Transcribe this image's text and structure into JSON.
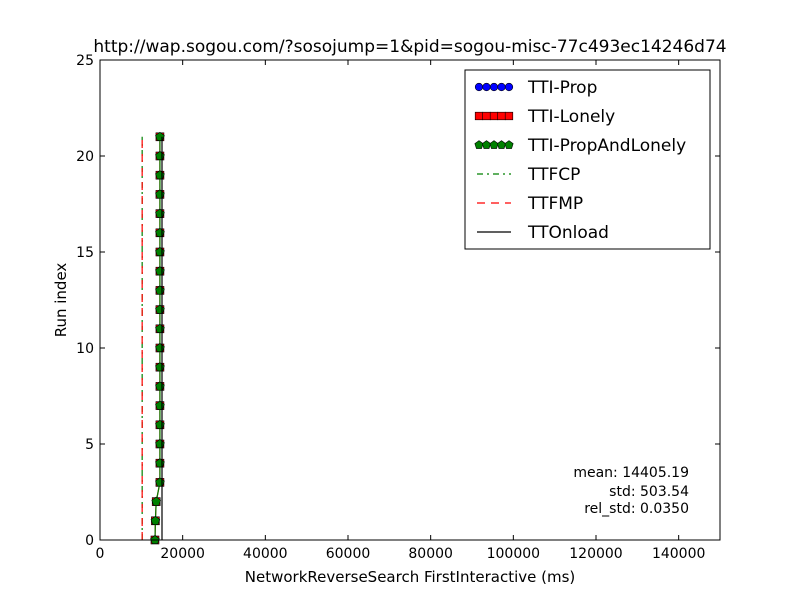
{
  "chart_data": {
    "type": "line",
    "title": "http://wap.sogou.com/?sosojump=1&pid=sogou-misc-77c493ec14246d74",
    "xlabel": "NetworkReverseSearch FirstInteractive (ms)",
    "ylabel": "Run index",
    "xlim": [
      0,
      150000
    ],
    "ylim": [
      0,
      25
    ],
    "xticks": [
      0,
      20000,
      40000,
      60000,
      80000,
      100000,
      120000,
      140000
    ],
    "xtick_labels": [
      "0",
      "20000",
      "40000",
      "60000",
      "80000",
      "100000",
      "120000",
      "140000"
    ],
    "yticks": [
      0,
      5,
      10,
      15,
      20,
      25
    ],
    "ytick_labels": [
      "0",
      "5",
      "10",
      "15",
      "20",
      "25"
    ],
    "grid": false,
    "legend_position": "top-right",
    "series": [
      {
        "name": "TTI-Prop",
        "color": "#0000ff",
        "marker": "circle",
        "x": [],
        "y": []
      },
      {
        "name": "TTI-Lonely",
        "color": "#ff0000",
        "marker": "square",
        "x": [
          13300,
          13400,
          13600,
          14500,
          14500,
          14500,
          14500,
          14500,
          14500,
          14500,
          14500,
          14500,
          14500,
          14500,
          14500,
          14500,
          14500,
          14500,
          14500,
          14500,
          14500,
          14500
        ],
        "y": [
          0,
          1,
          2,
          3,
          4,
          5,
          6,
          7,
          8,
          9,
          10,
          11,
          12,
          13,
          14,
          15,
          16,
          17,
          18,
          19,
          20,
          21
        ]
      },
      {
        "name": "TTI-PropAndLonely",
        "color": "#008000",
        "marker": "pentagon",
        "x": [
          13300,
          13400,
          13600,
          14500,
          14500,
          14500,
          14500,
          14500,
          14500,
          14500,
          14500,
          14500,
          14500,
          14500,
          14500,
          14500,
          14500,
          14500,
          14500,
          14500,
          14500,
          14500
        ],
        "y": [
          0,
          1,
          2,
          3,
          4,
          5,
          6,
          7,
          8,
          9,
          10,
          11,
          12,
          13,
          14,
          15,
          16,
          17,
          18,
          19,
          20,
          21
        ]
      },
      {
        "name": "TTFCP",
        "color": "#008000",
        "style": "dashdot",
        "x": [
          10200,
          10200
        ],
        "y": [
          0,
          21
        ]
      },
      {
        "name": "TTFMP",
        "color": "#ff0000",
        "style": "dashed",
        "x": [
          10200,
          10200
        ],
        "y": [
          0,
          21
        ]
      },
      {
        "name": "TTOnload",
        "color": "#000000",
        "style": "solid",
        "x": [
          15000,
          15000
        ],
        "y": [
          0,
          21
        ]
      }
    ],
    "annotations": [
      "mean: 14405.19",
      "std: 503.54",
      "rel_std: 0.0350"
    ]
  }
}
